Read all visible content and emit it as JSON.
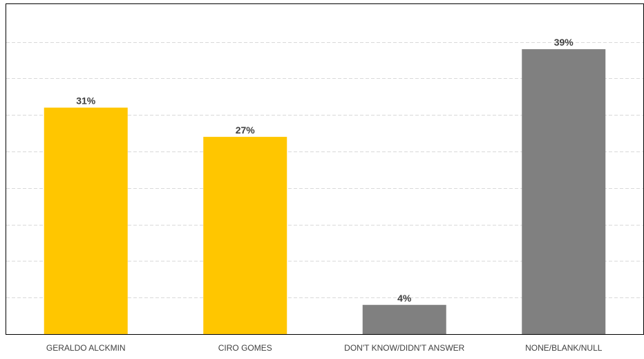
{
  "chart_data": {
    "type": "bar",
    "categories": [
      "GERALDO ALCKMIN",
      "CIRO GOMES",
      "DON'T KNOW/DIDN'T ANSWER",
      "NONE/BLANK/NULL"
    ],
    "values": [
      31,
      27,
      4,
      39
    ],
    "value_labels": [
      "31%",
      "27%",
      "4%",
      "39%"
    ],
    "bar_colors": [
      "#FFC600",
      "#FFC600",
      "#808080",
      "#808080"
    ],
    "ylim": [
      0,
      45
    ],
    "grid": true,
    "grid_step": 5,
    "title": "",
    "xlabel": "",
    "ylabel": ""
  }
}
